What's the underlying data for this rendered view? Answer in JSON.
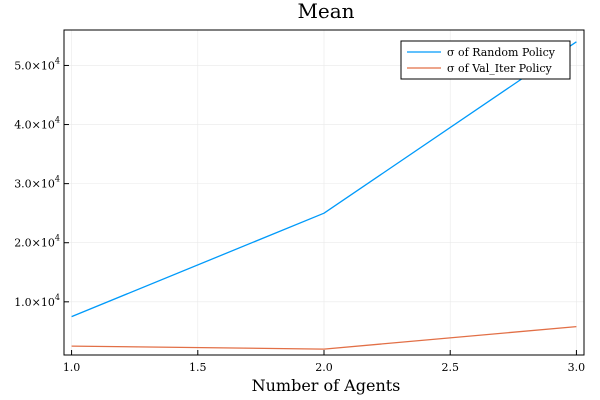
{
  "chart_data": {
    "type": "line",
    "title": "Mean",
    "xlabel": "Number of Agents",
    "ylabel": "",
    "xlim": [
      0.97,
      3.03
    ],
    "ylim": [
      1000,
      56000
    ],
    "grid": true,
    "legend_position": "top-right",
    "x_ticks": [
      1.0,
      1.5,
      2.0,
      2.5,
      3.0
    ],
    "x_tick_labels": [
      "1.0",
      "1.5",
      "2.0",
      "2.5",
      "3.0"
    ],
    "y_ticks": [
      10000,
      20000,
      30000,
      40000,
      50000
    ],
    "y_tick_labels": [
      {
        "mantissa": "1.0×10",
        "exponent": "4"
      },
      {
        "mantissa": "2.0×10",
        "exponent": "4"
      },
      {
        "mantissa": "3.0×10",
        "exponent": "4"
      },
      {
        "mantissa": "4.0×10",
        "exponent": "4"
      },
      {
        "mantissa": "5.0×10",
        "exponent": "4"
      }
    ],
    "series": [
      {
        "name": "σ of Random Policy",
        "color": "#009AFA",
        "x": [
          1,
          2,
          3
        ],
        "y": [
          7500,
          25000,
          54000
        ]
      },
      {
        "name": "σ of Val_Iter Policy",
        "color": "#E26F46",
        "x": [
          1,
          2,
          3
        ],
        "y": [
          2500,
          2000,
          5800
        ]
      }
    ]
  }
}
